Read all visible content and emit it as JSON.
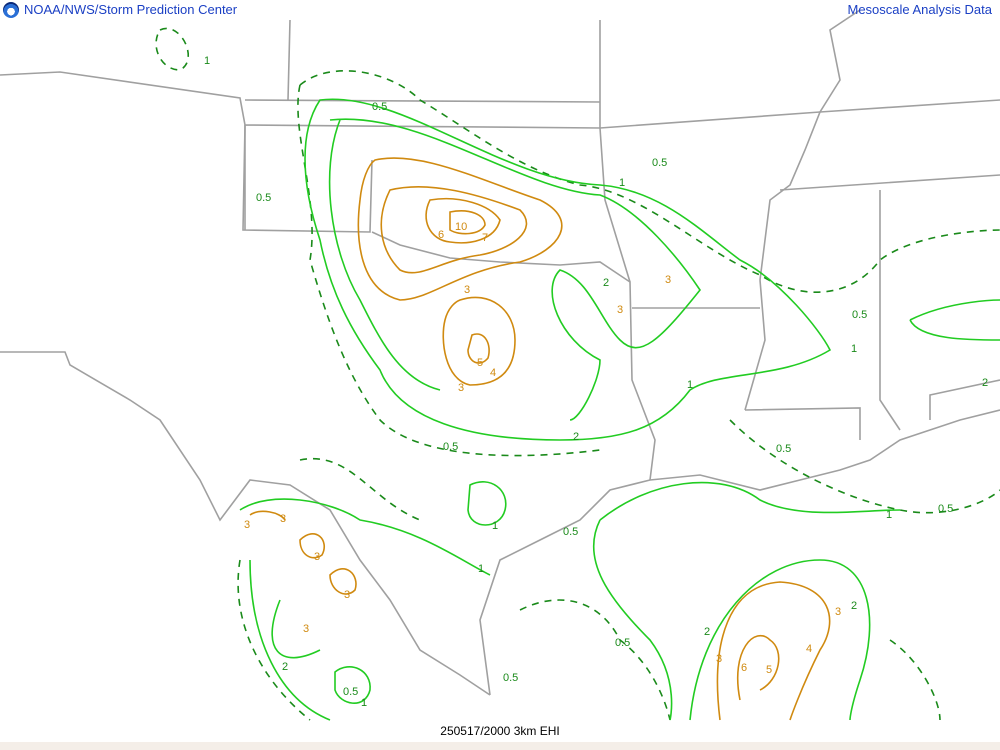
{
  "header": {
    "left_title": "NOAA/NWS/Storm Prediction Center",
    "right_title": "Mesoscale Analysis Data",
    "logo_icon": "noaa-logo-icon"
  },
  "footer": {
    "caption": "250517/2000 3km EHI"
  },
  "colors": {
    "borders": "#a0a0a0",
    "contour_0_5": "#1a8a1a",
    "contour_1_2": "#22cc22",
    "contour_3_plus": "#d08a10",
    "title_text": "#1a3fc4"
  },
  "contours": {
    "levels": [
      0.5,
      1,
      2,
      3,
      4,
      5,
      6,
      7,
      8,
      9,
      10
    ],
    "labels": [
      "1",
      "0.5",
      "0.5",
      "0.5",
      "1",
      "3",
      "6",
      "7",
      "10",
      "3",
      "3",
      "5",
      "4",
      "3",
      "2",
      "1",
      "2",
      "0.5",
      "0.5",
      "1",
      "0.5",
      "1",
      "2",
      "3",
      "3",
      "3",
      "3",
      "3",
      "0.5",
      "1",
      "2",
      "0.5",
      "0.5",
      "0.5",
      "1",
      "2",
      "3",
      "4",
      "5",
      "6",
      "3",
      "2",
      "0.5",
      "1"
    ]
  }
}
